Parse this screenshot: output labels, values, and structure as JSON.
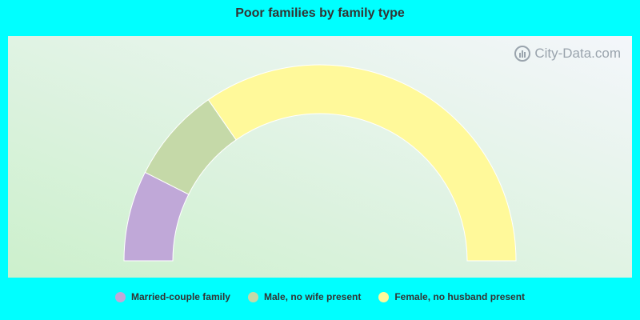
{
  "chart_data": {
    "type": "pie",
    "variant": "semi-donut",
    "title": "Poor families by family type",
    "series": [
      {
        "name": "Married-couple family",
        "value": 14.9,
        "color": "#c0a8d8"
      },
      {
        "name": "Male, no wife present",
        "value": 15.8,
        "color": "#c5d9a8"
      },
      {
        "name": "Female, no husband present",
        "value": 69.3,
        "color": "#fff99a"
      }
    ],
    "legend_position": "bottom"
  },
  "colors": {
    "page_background": "#00ffff",
    "plot_gradient_top_right": "#f4f6fb",
    "plot_gradient_bottom_left": "#ccf0cc",
    "title_text": "#333333"
  },
  "watermark": {
    "text": "City-Data.com",
    "icon": "city-data-logo-icon"
  }
}
